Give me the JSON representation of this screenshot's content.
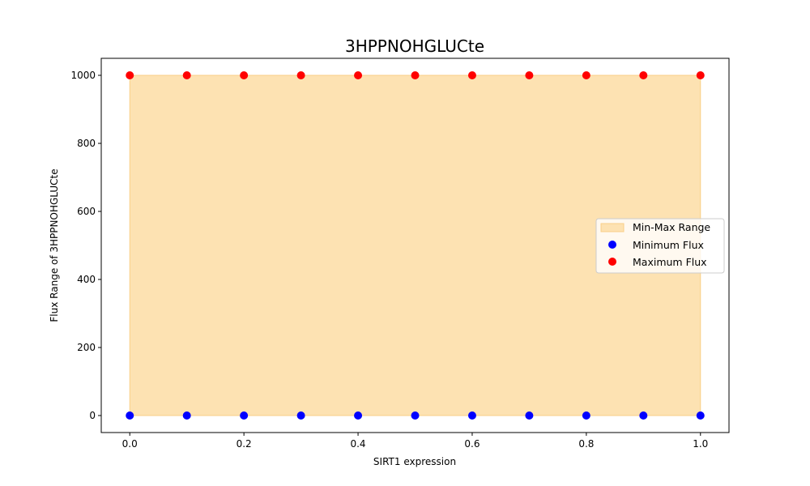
{
  "chart_data": {
    "type": "scatter",
    "title": "3HPPNOHGLUCte",
    "xlabel": "SIRT1 expression",
    "ylabel": "Flux Range of 3HPPNOHGLUCte",
    "x": [
      0.0,
      0.1,
      0.2,
      0.3,
      0.4,
      0.5,
      0.6,
      0.7,
      0.8,
      0.9,
      1.0
    ],
    "xlim": [
      -0.05,
      1.05
    ],
    "ylim": [
      -50,
      1050
    ],
    "xticks": [
      0.0,
      0.2,
      0.4,
      0.6,
      0.8,
      1.0
    ],
    "xtick_labels": [
      "0.0",
      "0.2",
      "0.4",
      "0.6",
      "0.8",
      "1.0"
    ],
    "yticks": [
      0,
      200,
      400,
      600,
      800,
      1000
    ],
    "ytick_labels": [
      "0",
      "200",
      "400",
      "600",
      "800",
      "1000"
    ],
    "grid": false,
    "legend_position": "center-right",
    "fill_range": {
      "name": "Min-Max Range",
      "lower": [
        0,
        0,
        0,
        0,
        0,
        0,
        0,
        0,
        0,
        0,
        0
      ],
      "upper": [
        1000,
        1000,
        1000,
        1000,
        1000,
        1000,
        1000,
        1000,
        1000,
        1000,
        1000
      ],
      "color": "#fde2b2",
      "edge_color": "#f9cf87"
    },
    "series": [
      {
        "name": "Minimum Flux",
        "values": [
          0,
          0,
          0,
          0,
          0,
          0,
          0,
          0,
          0,
          0,
          0
        ],
        "color": "#0000ff"
      },
      {
        "name": "Maximum Flux",
        "values": [
          1000,
          1000,
          1000,
          1000,
          1000,
          1000,
          1000,
          1000,
          1000,
          1000,
          1000
        ],
        "color": "#ff0000"
      }
    ]
  }
}
